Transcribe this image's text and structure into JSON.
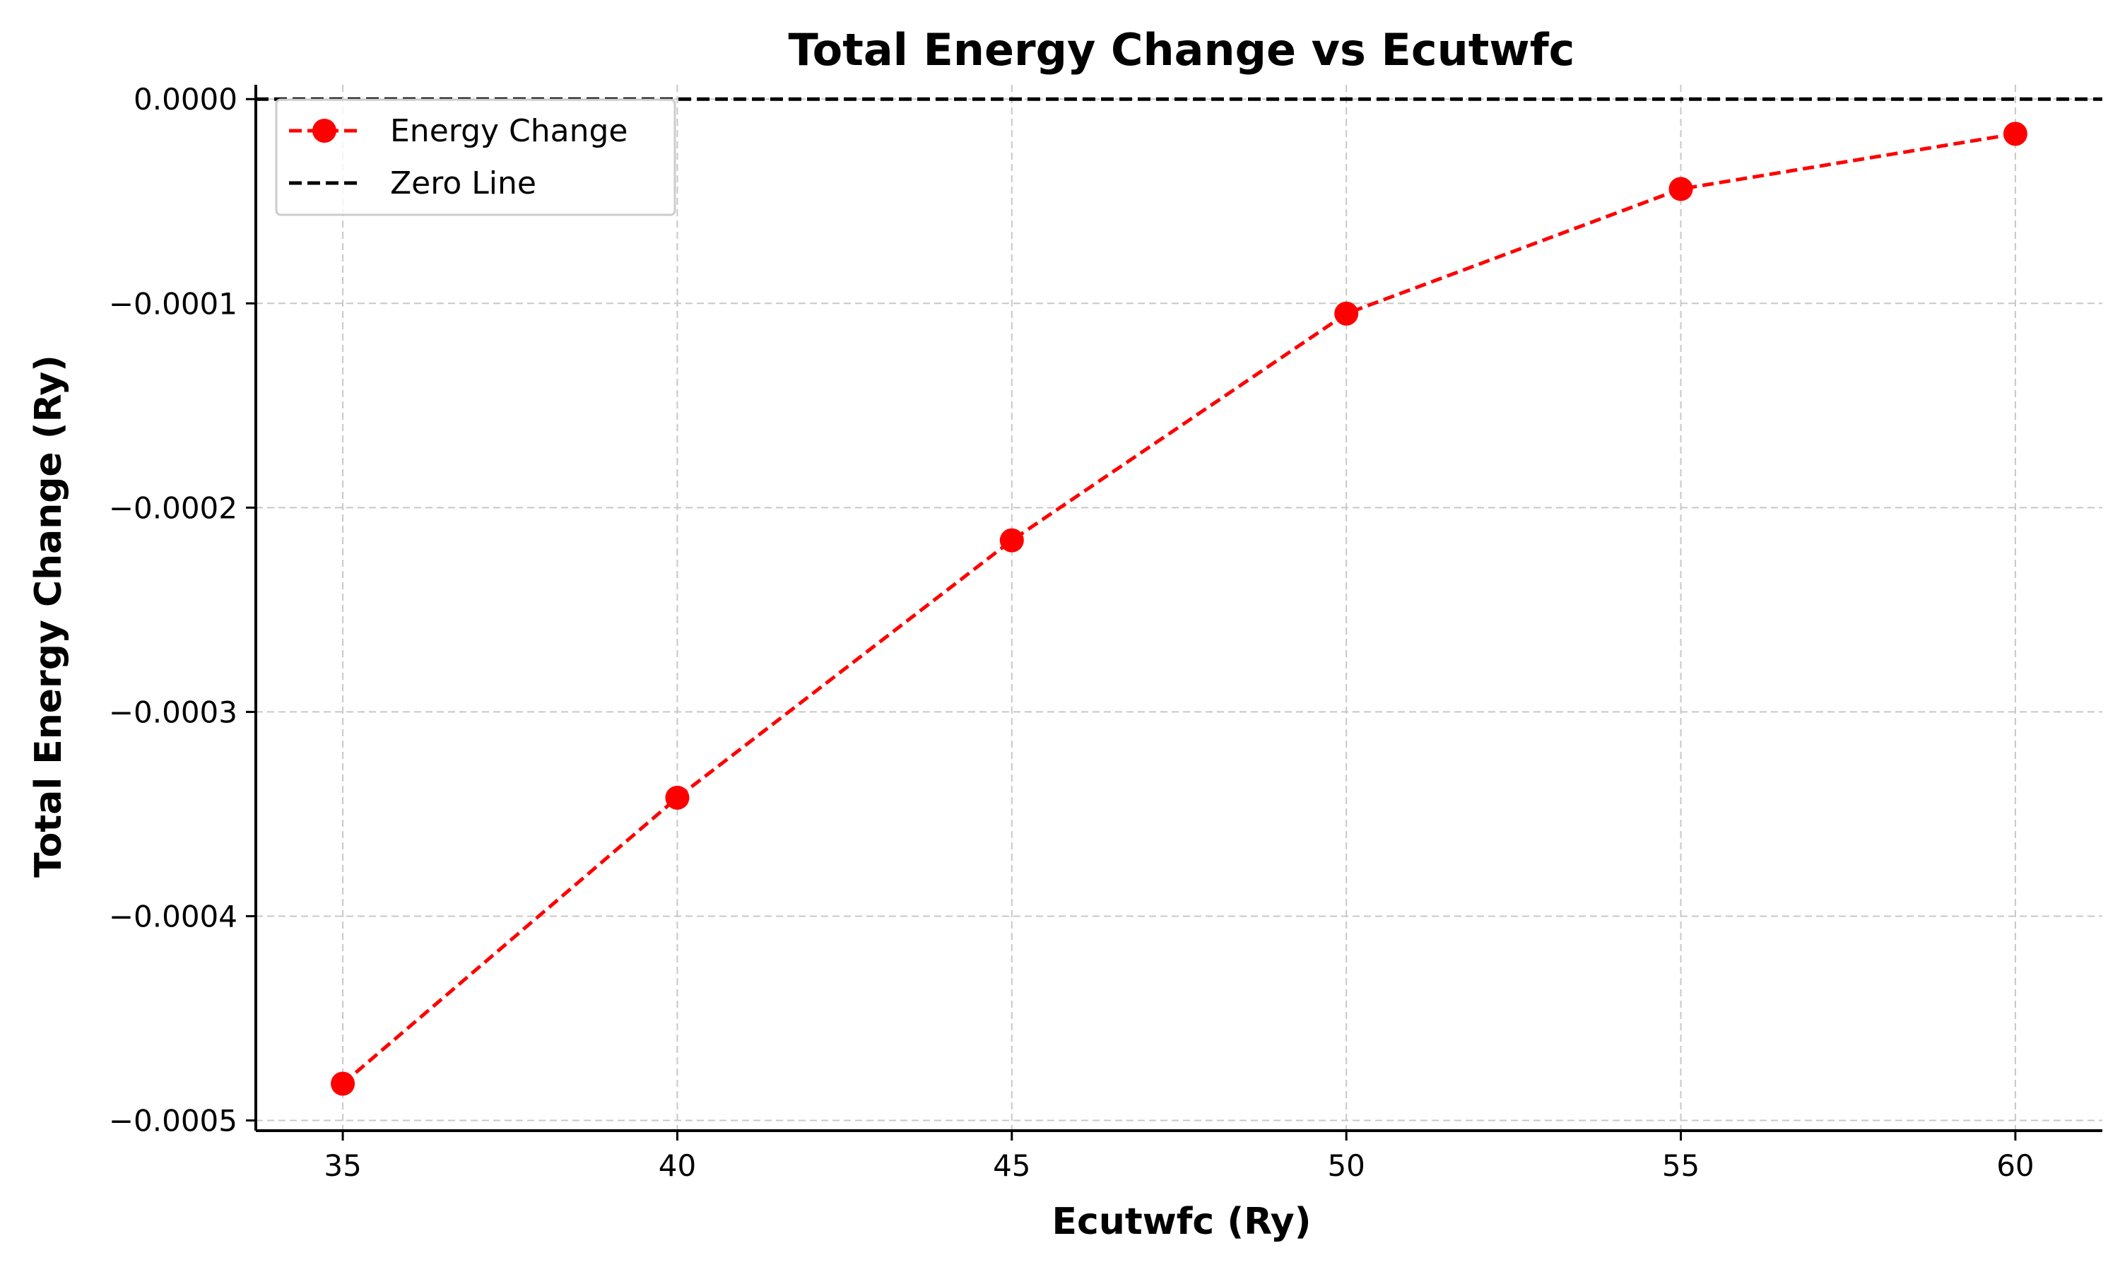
{
  "chart_data": {
    "type": "line",
    "title": "Total Energy Change vs Ecutwfc",
    "xlabel": "Ecutwfc (Ry)",
    "ylabel": "Total Energy Change (Ry)",
    "xlim": [
      33.7,
      61.3
    ],
    "ylim": [
      -0.000505,
      7e-06
    ],
    "x_ticks": [
      35,
      40,
      45,
      50,
      55,
      60
    ],
    "x_tick_labels": [
      "35",
      "40",
      "45",
      "50",
      "55",
      "60"
    ],
    "y_ticks": [
      0.0,
      -0.0001,
      -0.0002,
      -0.0003,
      -0.0004,
      -0.0005
    ],
    "y_tick_labels": [
      "0.0000",
      "−0.0001",
      "−0.0002",
      "−0.0003",
      "−0.0004",
      "−0.0005"
    ],
    "grid": true,
    "legend_position": "upper-left",
    "series": [
      {
        "name": "Energy Change",
        "color": "#ff0000",
        "line_style": "dashed",
        "marker": "circle",
        "x": [
          35,
          40,
          45,
          50,
          55,
          60
        ],
        "y": [
          -0.000482,
          -0.000342,
          -0.000216,
          -0.000105,
          -4.4e-05,
          -1.7e-05
        ]
      }
    ],
    "reference_lines": [
      {
        "name": "Zero Line",
        "color": "#000000",
        "line_style": "dashed",
        "y": 0.0
      }
    ]
  }
}
